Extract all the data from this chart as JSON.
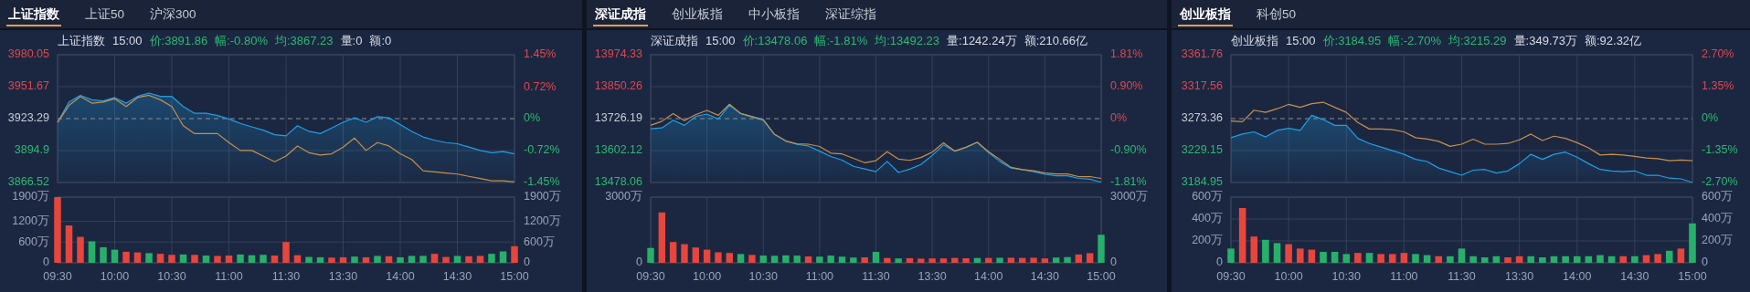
{
  "chart_data": [
    {
      "type": "line",
      "title": "上证指数 15:00 价:3891.86 幅:-0.80% 均:3867.23 量:0 额:0",
      "annotations": [
        "上证指数",
        "上证50",
        "沪深300"
      ],
      "tick_labels": "y",
      "grid": true,
      "categories": [
        null,
        null,
        null,
        null,
        null,
        null,
        null,
        null,
        null,
        null,
        null,
        null,
        null,
        null,
        null,
        null,
        null,
        null,
        null,
        null,
        null,
        null,
        null,
        null,
        null,
        null,
        null,
        null,
        null,
        null,
        null,
        null,
        null,
        null,
        null,
        null,
        null,
        null,
        null,
        null,
        null
      ],
      "ylim": [
        3866.52,
        3980.05
      ],
      "yticks": [
        3866.52,
        3894.9,
        3923.29,
        3951.67,
        3980.05
      ],
      "y2lim": [
        -1.45,
        1.45
      ],
      "y2ticks": [
        {
          "value": -1.45,
          "label": "-1.45%"
        },
        {
          "value": -0.72,
          "label": "-0.72%"
        },
        {
          "value": 0,
          "label": "0%"
        },
        {
          "value": 0.72,
          "label": "0.72%"
        },
        {
          "value": 1.45,
          "label": "1.45%"
        }
      ],
      "ref_lines": [
        {
          "axis": "y",
          "value": 3923.29,
          "line_style": "dashed",
          "color": "#8a8f99"
        }
      ],
      "series": [
        {
          "type": "area",
          "color": "#1ea0e6",
          "values": [
            3920,
            3938,
            3944,
            3940,
            3939,
            3942,
            3937,
            3943,
            3946,
            3943,
            3943,
            3934,
            3928,
            3928,
            3926,
            3923,
            3919,
            3916,
            3913,
            3909,
            3908,
            3917,
            3912,
            3910,
            3915,
            3920,
            3924,
            3920,
            3925,
            3924,
            3918,
            3912,
            3907,
            3904,
            3902,
            3901,
            3898,
            3895,
            3893,
            3894,
            3892
          ]
        },
        {
          "type": "line",
          "color": "#c8904a",
          "values": [
            3920,
            3935,
            3943,
            3937,
            3938,
            3941,
            3934,
            3942,
            3944,
            3940,
            3934,
            3917,
            3910,
            3910,
            3910,
            3902,
            3895,
            3895,
            3890,
            3885,
            3890,
            3899,
            3893,
            3891,
            3892,
            3898,
            3906,
            3895,
            3902,
            3899,
            3892,
            3887,
            3877,
            3876,
            3875,
            3874,
            3872,
            3870,
            3868,
            3868,
            3867
          ]
        }
      ]
    },
    {
      "type": "bar",
      "grid": true,
      "categories": [
        "09:30",
        null,
        null,
        null,
        null,
        "10:00",
        null,
        null,
        null,
        null,
        "10:30",
        null,
        null,
        null,
        null,
        "11:00",
        null,
        null,
        null,
        null,
        "11:30",
        null,
        null,
        null,
        null,
        "13:30",
        null,
        null,
        null,
        null,
        "14:00",
        null,
        null,
        null,
        null,
        "14:30",
        null,
        null,
        null,
        null,
        "15:00"
      ],
      "ylim": [
        0,
        1900
      ],
      "yticks": [
        {
          "value": 0,
          "label": "0"
        },
        {
          "value": 600,
          "label": "600万"
        },
        {
          "value": 1200,
          "label": "1200万"
        },
        {
          "value": 1900,
          "label": "1900万"
        }
      ],
      "y2lim": [
        0,
        1900
      ],
      "y2ticks": [
        {
          "value": 0,
          "label": "0"
        },
        {
          "value": 600,
          "label": "600万"
        },
        {
          "value": 1200,
          "label": "1200万"
        },
        {
          "value": 1900,
          "label": "1900万"
        }
      ],
      "values": [
        1900,
        1080,
        750,
        620,
        450,
        380,
        320,
        300,
        280,
        260,
        230,
        240,
        230,
        210,
        200,
        210,
        240,
        220,
        230,
        210,
        600,
        220,
        170,
        160,
        150,
        160,
        180,
        160,
        200,
        190,
        160,
        200,
        200,
        260,
        170,
        200,
        190,
        200,
        260,
        330,
        480
      ],
      "colors": [
        "#e8453c",
        "#e8453c",
        "#e8453c",
        "#27b06a",
        "#27b06a",
        "#27b06a",
        "#e8453c",
        "#e8453c",
        "#27b06a",
        "#e8453c",
        "#e8453c",
        "#27b06a",
        "#e8453c",
        "#27b06a",
        "#e8453c",
        "#e8453c",
        "#27b06a",
        "#27b06a",
        "#27b06a",
        "#e8453c",
        "#e8453c",
        "#e8453c",
        "#27b06a",
        "#27b06a",
        "#e8453c",
        "#e8453c",
        "#27b06a",
        "#e8453c",
        "#27b06a",
        "#e8453c",
        "#27b06a",
        "#27b06a",
        "#27b06a",
        "#e8453c",
        "#e8453c",
        "#27b06a",
        "#e8453c",
        "#e8453c",
        "#27b06a",
        "#27b06a",
        "#e8453c"
      ]
    },
    {
      "type": "line",
      "title": "深证成指 15:00 价:13478.06 幅:-1.81% 均:13492.23 量:1242.24万 额:210.66亿",
      "annotations": [
        "深证成指",
        "创业板指",
        "中小板指",
        "深证综指"
      ],
      "tick_labels": "y",
      "grid": true,
      "categories": [
        null,
        null,
        null,
        null,
        null,
        null,
        null,
        null,
        null,
        null,
        null,
        null,
        null,
        null,
        null,
        null,
        null,
        null,
        null,
        null,
        null,
        null,
        null,
        null,
        null,
        null,
        null,
        null,
        null,
        null,
        null,
        null,
        null,
        null,
        null,
        null,
        null,
        null,
        null,
        null,
        null
      ],
      "ylim": [
        13478.06,
        13974.33
      ],
      "yticks": [
        13478.06,
        13602.12,
        13726.19,
        13850.26,
        13974.33
      ],
      "y2lim": [
        -1.81,
        1.81
      ],
      "y2ticks": [
        {
          "value": -1.81,
          "label": "-1.81%"
        },
        {
          "value": -0.9,
          "label": "-0.90%"
        },
        {
          "value": 0,
          "label": "0%"
        },
        {
          "value": 0.9,
          "label": "0.90%"
        },
        {
          "value": 1.81,
          "label": "1.81%"
        }
      ],
      "ref_lines": [
        {
          "axis": "y",
          "value": 13726.19,
          "line_style": "dashed",
          "color": "#8a8f99"
        }
      ],
      "series": [
        {
          "type": "area",
          "color": "#1ea0e6",
          "values": [
            13687,
            13690,
            13720,
            13700,
            13735,
            13744,
            13725,
            13778,
            13746,
            13735,
            13723,
            13665,
            13640,
            13626,
            13620,
            13600,
            13579,
            13565,
            13541,
            13531,
            13520,
            13560,
            13517,
            13530,
            13548,
            13583,
            13624,
            13600,
            13615,
            13635,
            13595,
            13560,
            13534,
            13528,
            13520,
            13510,
            13504,
            13504,
            13494,
            13491,
            13479
          ]
        },
        {
          "type": "line",
          "color": "#c8904a",
          "values": [
            13700,
            13716,
            13746,
            13718,
            13742,
            13758,
            13739,
            13782,
            13746,
            13733,
            13720,
            13665,
            13639,
            13628,
            13627,
            13618,
            13592,
            13589,
            13572,
            13555,
            13563,
            13598,
            13569,
            13564,
            13575,
            13596,
            13632,
            13600,
            13615,
            13634,
            13598,
            13568,
            13537,
            13528,
            13524,
            13515,
            13511,
            13511,
            13501,
            13501,
            13494
          ]
        }
      ]
    },
    {
      "type": "bar",
      "grid": true,
      "categories": [
        "09:30",
        null,
        null,
        null,
        null,
        "10:00",
        null,
        null,
        null,
        null,
        "10:30",
        null,
        null,
        null,
        null,
        "11:00",
        null,
        null,
        null,
        null,
        "11:30",
        null,
        null,
        null,
        null,
        "13:30",
        null,
        null,
        null,
        null,
        "14:00",
        null,
        null,
        null,
        null,
        "14:30",
        null,
        null,
        null,
        null,
        "15:00"
      ],
      "ylim": [
        0,
        3000
      ],
      "yticks": [
        {
          "value": 0,
          "label": "0"
        },
        {
          "value": 3000,
          "label": "3000万"
        }
      ],
      "y2lim": [
        0,
        3000
      ],
      "y2ticks": [
        {
          "value": 0,
          "label": "0"
        },
        {
          "value": 3000,
          "label": "3000万"
        }
      ],
      "values": [
        680,
        2300,
        950,
        850,
        700,
        600,
        480,
        450,
        400,
        360,
        330,
        320,
        340,
        330,
        290,
        280,
        330,
        280,
        240,
        250,
        500,
        220,
        200,
        210,
        190,
        200,
        200,
        220,
        210,
        220,
        220,
        230,
        230,
        220,
        230,
        200,
        240,
        260,
        380,
        440,
        1280
      ],
      "colors": [
        "#27b06a",
        "#e8453c",
        "#e8453c",
        "#e8453c",
        "#e8453c",
        "#e8453c",
        "#e8453c",
        "#e8453c",
        "#27b06a",
        "#e8453c",
        "#27b06a",
        "#27b06a",
        "#27b06a",
        "#27b06a",
        "#e8453c",
        "#27b06a",
        "#27b06a",
        "#27b06a",
        "#27b06a",
        "#e8453c",
        "#27b06a",
        "#e8453c",
        "#27b06a",
        "#e8453c",
        "#e8453c",
        "#e8453c",
        "#e8453c",
        "#e8453c",
        "#e8453c",
        "#27b06a",
        "#e8453c",
        "#27b06a",
        "#e8453c",
        "#e8453c",
        "#e8453c",
        "#e8453c",
        "#27b06a",
        "#27b06a",
        "#e8453c",
        "#e8453c",
        "#27b06a"
      ]
    },
    {
      "type": "line",
      "title": "创业板指 15:00 价:3184.95 幅:-2.70% 均:3215.29 量:349.73万 额:92.32亿",
      "annotations": [
        "创业板指",
        "科创50"
      ],
      "tick_labels": "y",
      "grid": true,
      "categories": [
        null,
        null,
        null,
        null,
        null,
        null,
        null,
        null,
        null,
        null,
        null,
        null,
        null,
        null,
        null,
        null,
        null,
        null,
        null,
        null,
        null,
        null,
        null,
        null,
        null,
        null,
        null,
        null,
        null,
        null,
        null,
        null,
        null,
        null,
        null,
        null,
        null,
        null,
        null,
        null,
        null
      ],
      "ylim": [
        3184.95,
        3361.76
      ],
      "yticks": [
        3184.95,
        3229.15,
        3273.36,
        3317.56,
        3361.76
      ],
      "y2lim": [
        -2.7,
        2.7
      ],
      "y2ticks": [
        {
          "value": -2.7,
          "label": "-2.70%"
        },
        {
          "value": -1.35,
          "label": "-1.35%"
        },
        {
          "value": 0,
          "label": "0%"
        },
        {
          "value": 1.35,
          "label": "1.35%"
        },
        {
          "value": 2.7,
          "label": "2.70%"
        }
      ],
      "ref_lines": [
        {
          "axis": "y",
          "value": 3273.36,
          "line_style": "dashed",
          "color": "#8a8f99"
        }
      ],
      "series": [
        {
          "type": "area",
          "color": "#1ea0e6",
          "values": [
            3247,
            3252,
            3255,
            3248,
            3257,
            3260,
            3257,
            3278,
            3272,
            3264,
            3264,
            3246,
            3239,
            3234,
            3229,
            3224,
            3217,
            3214,
            3205,
            3200,
            3195,
            3202,
            3203,
            3198,
            3201,
            3211,
            3224,
            3217,
            3224,
            3227,
            3220,
            3211,
            3203,
            3201,
            3200,
            3201,
            3195,
            3195,
            3191,
            3190,
            3185
          ]
        },
        {
          "type": "line",
          "color": "#c8904a",
          "values": [
            3270,
            3269,
            3285,
            3282,
            3287,
            3293,
            3289,
            3294,
            3296,
            3289,
            3282,
            3268,
            3259,
            3259,
            3258,
            3255,
            3247,
            3245,
            3242,
            3235,
            3238,
            3245,
            3238,
            3238,
            3239,
            3244,
            3252,
            3243,
            3249,
            3246,
            3240,
            3233,
            3223,
            3224,
            3223,
            3221,
            3219,
            3218,
            3215,
            3216,
            3215
          ]
        }
      ]
    },
    {
      "type": "bar",
      "grid": true,
      "categories": [
        "09:30",
        null,
        null,
        null,
        null,
        "10:00",
        null,
        null,
        null,
        null,
        "10:30",
        null,
        null,
        null,
        null,
        "11:00",
        null,
        null,
        null,
        null,
        "11:30",
        null,
        null,
        null,
        null,
        "13:30",
        null,
        null,
        null,
        null,
        "14:00",
        null,
        null,
        null,
        null,
        "14:30",
        null,
        null,
        null,
        null,
        "15:00"
      ],
      "ylim": [
        0,
        600
      ],
      "yticks": [
        {
          "value": 0,
          "label": "0"
        },
        {
          "value": 200,
          "label": "200万"
        },
        {
          "value": 400,
          "label": "400万"
        },
        {
          "value": 600,
          "label": "600万"
        }
      ],
      "y2lim": [
        0,
        600
      ],
      "y2ticks": [
        {
          "value": 0,
          "label": "0"
        },
        {
          "value": 200,
          "label": "200万"
        },
        {
          "value": 400,
          "label": "400万"
        },
        {
          "value": 600,
          "label": "600万"
        }
      ],
      "values": [
        130,
        500,
        240,
        210,
        180,
        170,
        130,
        120,
        100,
        100,
        80,
        90,
        90,
        80,
        80,
        90,
        80,
        70,
        60,
        60,
        130,
        60,
        50,
        60,
        50,
        60,
        60,
        50,
        60,
        60,
        60,
        60,
        70,
        60,
        60,
        60,
        70,
        80,
        110,
        130,
        360
      ],
      "colors": [
        "#27b06a",
        "#e8453c",
        "#e8453c",
        "#27b06a",
        "#27b06a",
        "#e8453c",
        "#e8453c",
        "#e8453c",
        "#27b06a",
        "#27b06a",
        "#27b06a",
        "#e8453c",
        "#27b06a",
        "#e8453c",
        "#e8453c",
        "#e8453c",
        "#27b06a",
        "#27b06a",
        "#e8453c",
        "#27b06a",
        "#27b06a",
        "#27b06a",
        "#27b06a",
        "#27b06a",
        "#e8453c",
        "#e8453c",
        "#27b06a",
        "#27b06a",
        "#27b06a",
        "#27b06a",
        "#27b06a",
        "#27b06a",
        "#27b06a",
        "#27b06a",
        "#e8453c",
        "#27b06a",
        "#e8453c",
        "#e8453c",
        "#27b06a",
        "#e8453c",
        "#27b06a"
      ]
    }
  ]
}
